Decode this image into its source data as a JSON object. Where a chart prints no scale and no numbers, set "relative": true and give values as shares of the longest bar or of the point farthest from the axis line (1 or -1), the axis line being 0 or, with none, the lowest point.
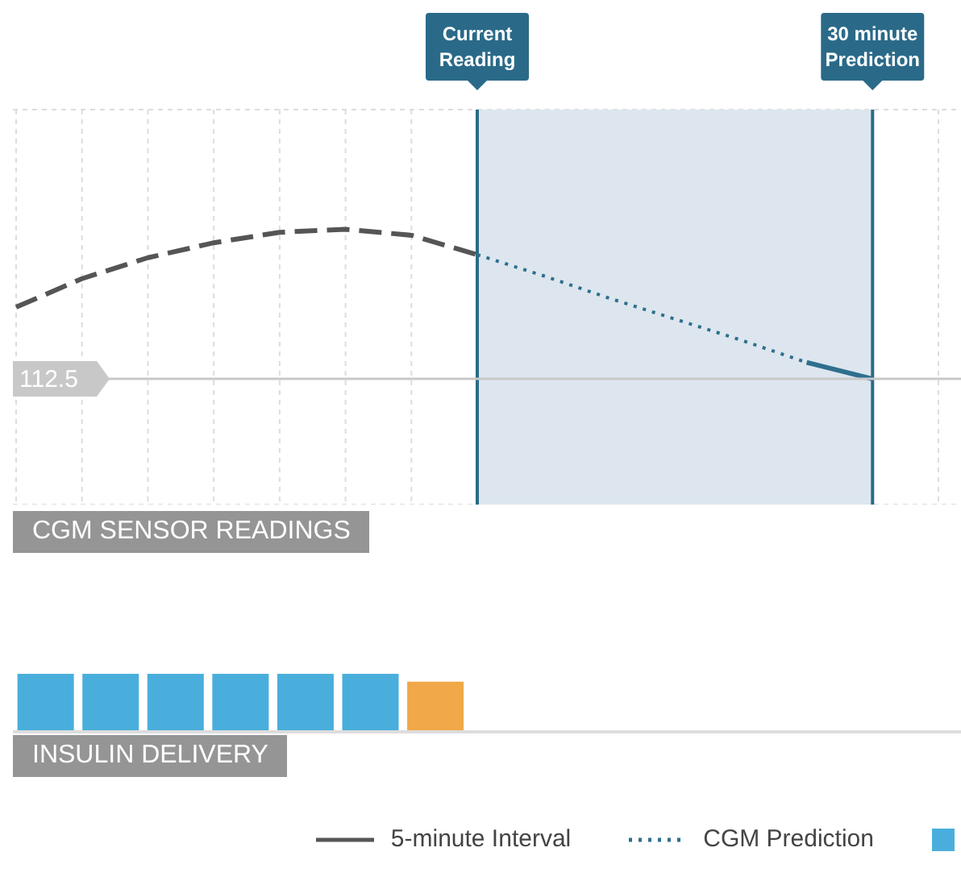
{
  "chart_data": [
    {
      "type": "line",
      "title": "CGM SENSOR READINGS",
      "relative": true,
      "categories": [
        null,
        null,
        null,
        null,
        null,
        null,
        null,
        "Current Reading",
        null,
        null,
        null,
        null,
        null,
        "30 minute Prediction",
        null
      ],
      "grid": "x",
      "legend": "bottom",
      "marker": "none",
      "series": [
        {
          "name": "5-minute Interval",
          "color": "#555555",
          "line_style": "dashed",
          "values": [
            0.48,
            0.67,
            0.81,
            0.91,
            0.98,
            1.0,
            0.96,
            0.83,
            null,
            null,
            null,
            null,
            null,
            null,
            null
          ]
        },
        {
          "name": "CGM Prediction",
          "color": "#2e6f8e",
          "line_style": "dotted",
          "values": [
            null,
            null,
            null,
            null,
            null,
            null,
            null,
            0.83,
            0.69,
            0.54,
            0.4,
            0.26,
            0.11,
            null,
            null
          ]
        },
        {
          "color": "#2e6f8e",
          "line_style": "solid",
          "values": [
            null,
            null,
            null,
            null,
            null,
            null,
            null,
            null,
            null,
            null,
            null,
            null,
            0.11,
            0,
            null
          ]
        }
      ],
      "ref_lines": [
        {
          "axis": "y",
          "value": 0,
          "color": "#c8c8c8"
        }
      ],
      "bands": [
        {
          "axis": "x",
          "from": "Current Reading",
          "to": "30 minute Prediction",
          "color": "#dde6ee"
        }
      ],
      "annotations": [
        "112.5"
      ]
    },
    {
      "type": "bar",
      "title": "INSULIN DELIVERY",
      "relative": true,
      "categories": [
        null,
        null,
        null,
        null,
        null,
        null,
        null
      ],
      "values": [
        1,
        1,
        1,
        1,
        1,
        1,
        0.86
      ],
      "colors": [
        "#4aaedc",
        "#4aaedc",
        "#4aaedc",
        "#4aaedc",
        "#4aaedc",
        "#4aaedc",
        "#f0a848"
      ]
    }
  ]
}
